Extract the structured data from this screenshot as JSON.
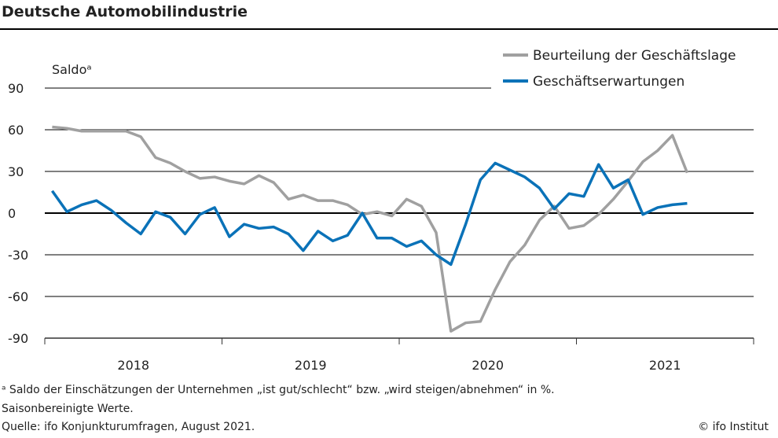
{
  "title": "Deutsche Automobilindustrie",
  "footnotes": [
    "ᵃ Saldo der Einschätzungen der Unternehmen „ist gut/schlecht“ bzw. „wird steigen/abnehmen“ in %.",
    "Saisonbereinigte Werte.",
    "Quelle: ifo Konjunkturumfragen, August 2021."
  ],
  "copyright": "© ifo Institut",
  "chart_data": {
    "type": "line",
    "ylabel": "Saldoᵃ",
    "ylim": [
      -90,
      90
    ],
    "yticks": [
      90,
      60,
      30,
      0,
      -30,
      -60,
      -90
    ],
    "xticks": [
      "2018",
      "2019",
      "2020",
      "2021"
    ],
    "x_start": "2018-01",
    "x_freq": "monthly",
    "legend": "top-right",
    "grid": true,
    "series": [
      {
        "name": "Beurteilung der Geschäftslage",
        "color": "#a0a0a0",
        "values": [
          62,
          61,
          59,
          59,
          59,
          59,
          55,
          40,
          36,
          30,
          25,
          26,
          23,
          21,
          27,
          22,
          10,
          13,
          9,
          9,
          6,
          -1,
          1,
          -2,
          10,
          5,
          -14,
          -85,
          -79,
          -78,
          -55,
          -35,
          -23,
          -5,
          5,
          -11,
          -9,
          -1,
          10,
          23,
          37,
          45,
          56,
          29
        ]
      },
      {
        "name": "Geschäftserwartungen",
        "color": "#0a72b8",
        "values": [
          16,
          1,
          6,
          9,
          2,
          -7,
          -15,
          1,
          -3,
          -15,
          -1,
          4,
          -17,
          -8,
          -11,
          -10,
          -15,
          -27,
          -13,
          -20,
          -16,
          0,
          -18,
          -18,
          -24,
          -20,
          -30,
          -37,
          -8,
          24,
          36,
          31,
          26,
          18,
          3,
          14,
          12,
          35,
          18,
          24,
          -1,
          4,
          6,
          7
        ]
      }
    ]
  }
}
